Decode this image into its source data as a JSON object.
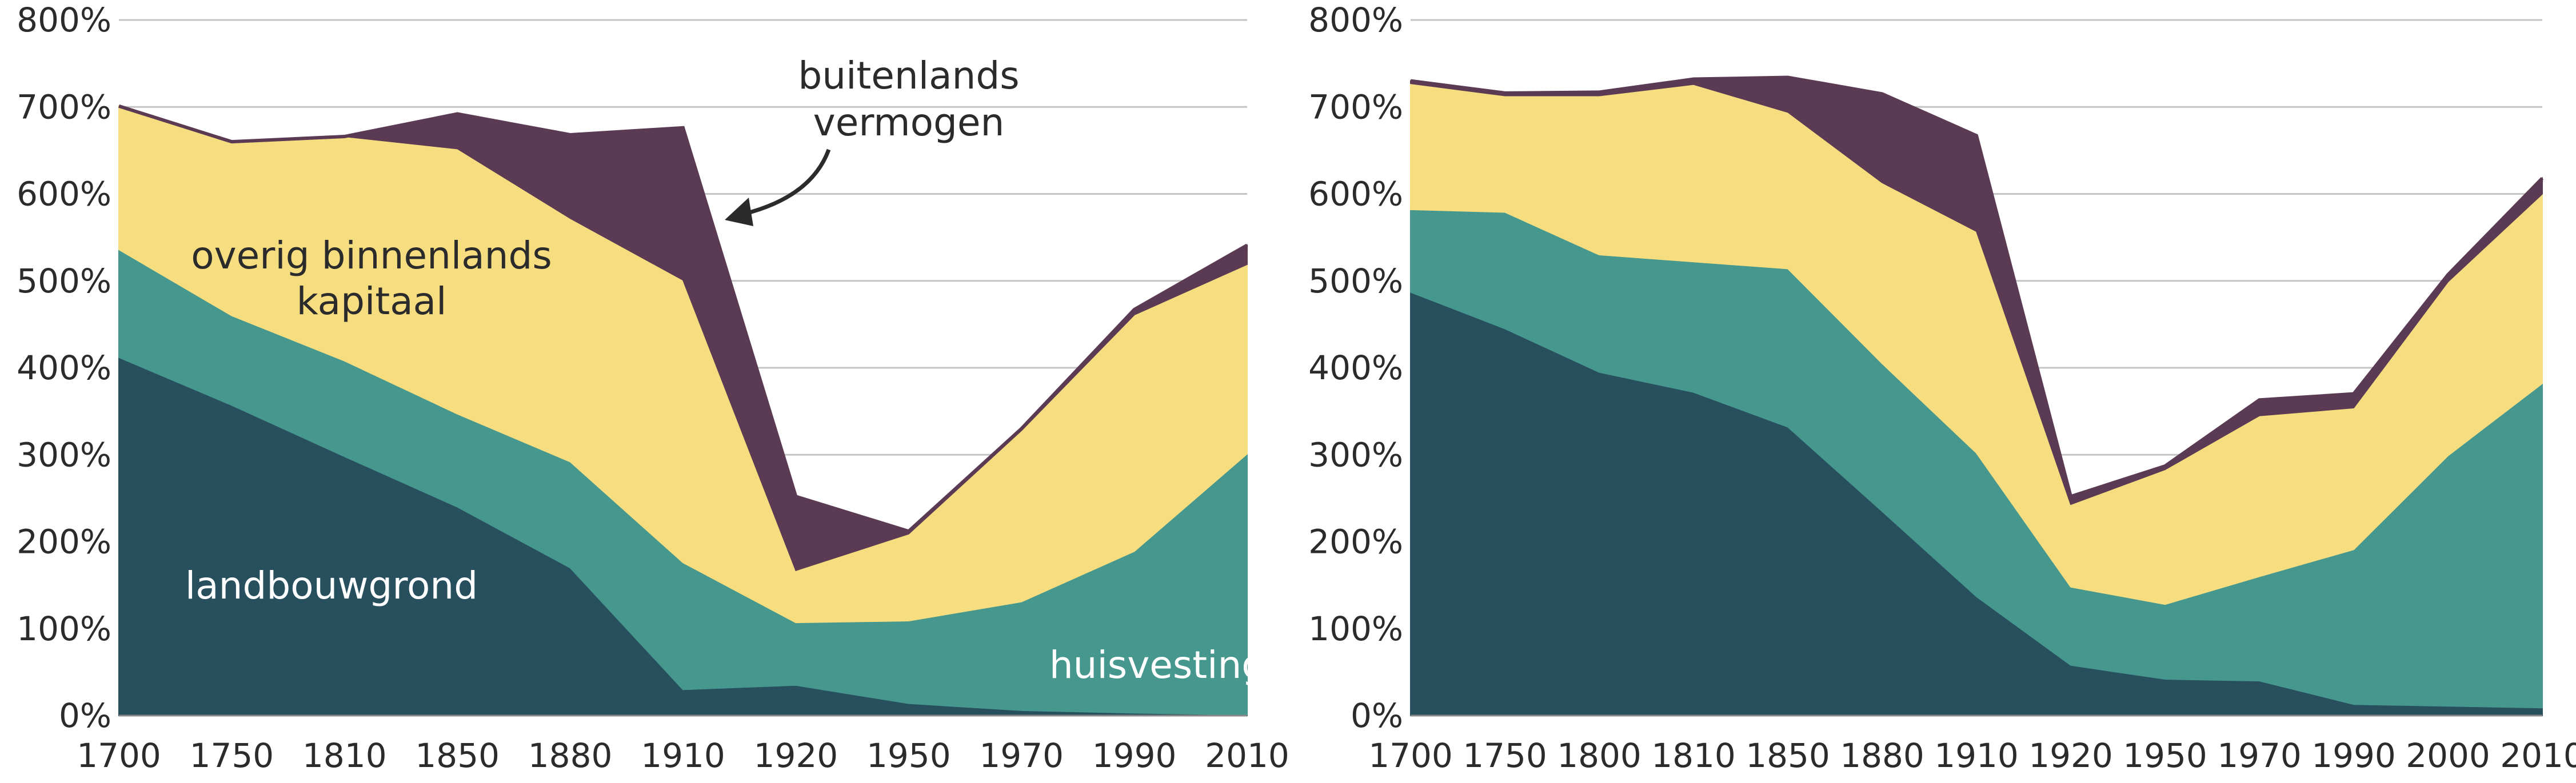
{
  "chart_data": [
    {
      "type": "area",
      "stacked": true,
      "x_categories": [
        "1700",
        "1750",
        "1810",
        "1850",
        "1880",
        "1910",
        "1920",
        "1950",
        "1970",
        "1990",
        "2010"
      ],
      "ylim": [
        0,
        800
      ],
      "yticks": [
        "0%",
        "100%",
        "200%",
        "300%",
        "400%",
        "500%",
        "600%",
        "700%",
        "800%"
      ],
      "grid": true,
      "series": [
        {
          "name": "landbouwgrond",
          "color": "#274f5e",
          "values": [
            412,
            357,
            298,
            240,
            170,
            30,
            35,
            14,
            6,
            3,
            1
          ]
        },
        {
          "name": "huisvesting",
          "color": "#46978d",
          "values": [
            124,
            103,
            110,
            107,
            122,
            146,
            72,
            95,
            125,
            186,
            300
          ]
        },
        {
          "name": "overig binnenlands kapitaal",
          "color": "#f6de80",
          "values": [
            165,
            200,
            258,
            305,
            280,
            325,
            60,
            100,
            197,
            272,
            218
          ]
        },
        {
          "name": "buitenlands vermogen",
          "color": "#5b3a54",
          "values": [
            0,
            0,
            0,
            40,
            96,
            175,
            85,
            3,
            2,
            6,
            22
          ]
        }
      ],
      "annotations": {
        "land": "landbouwgrond",
        "housing": "huisvesting",
        "other_line1": "overig binnenlands",
        "other_line2": "kapitaal",
        "foreign_line1": "buitenlands",
        "foreign_line2": "vermogen"
      }
    },
    {
      "type": "area",
      "stacked": true,
      "x_categories": [
        "1700",
        "1750",
        "1800",
        "1810",
        "1850",
        "1880",
        "1910",
        "1920",
        "1950",
        "1970",
        "1990",
        "2000",
        "2010"
      ],
      "ylim": [
        0,
        800
      ],
      "yticks": [
        "0%",
        "100%",
        "200%",
        "300%",
        "400%",
        "500%",
        "600%",
        "700%",
        "800%"
      ],
      "grid": true,
      "series": [
        {
          "name": "landbouwgrond",
          "color": "#274f5e",
          "values": [
            487,
            445,
            395,
            372,
            332,
            235,
            137,
            58,
            42,
            40,
            13,
            11,
            9
          ]
        },
        {
          "name": "huisvesting",
          "color": "#46978d",
          "values": [
            95,
            134,
            135,
            150,
            182,
            170,
            165,
            90,
            86,
            120,
            178,
            288,
            373
          ]
        },
        {
          "name": "overig binnenlands kapitaal",
          "color": "#f6de80",
          "values": [
            145,
            134,
            183,
            204,
            180,
            208,
            255,
            95,
            155,
            185,
            163,
            200,
            218
          ]
        },
        {
          "name": "buitenlands vermogen",
          "color": "#5b3a54",
          "values": [
            3,
            3,
            4,
            6,
            40,
            102,
            110,
            9,
            4,
            18,
            16,
            8,
            18
          ]
        }
      ]
    }
  ]
}
